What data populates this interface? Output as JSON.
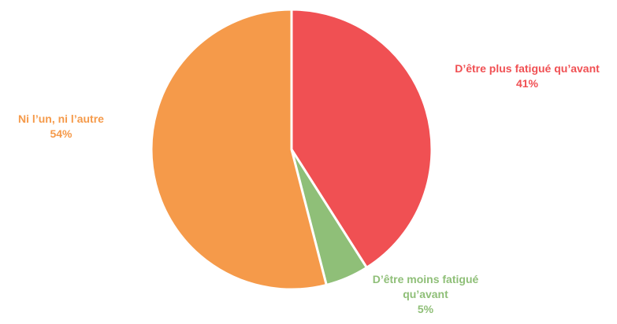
{
  "chart_data": {
    "type": "pie",
    "categories": [
      "D’être plus fatigué qu’avant",
      "D’être moins fatigué qu’avant",
      "Ni l’un, ni l’autre"
    ],
    "values": [
      41,
      5,
      54
    ],
    "value_labels": [
      "41%",
      "5%",
      "54%"
    ],
    "colors": [
      "#f05053",
      "#8fbf78",
      "#f59a4a"
    ]
  }
}
